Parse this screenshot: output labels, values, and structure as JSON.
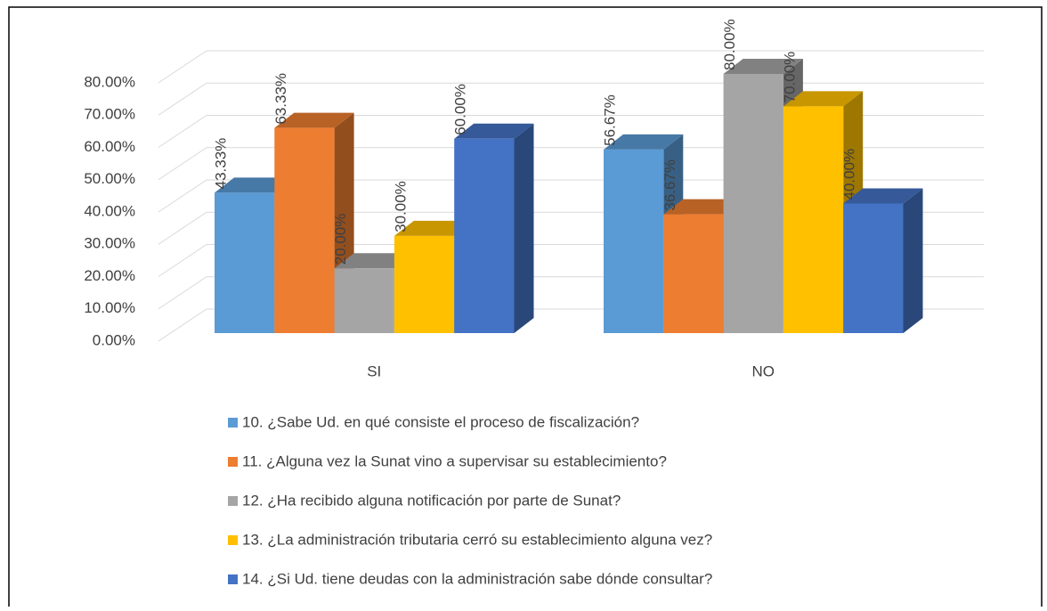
{
  "chart_data": {
    "type": "bar3d",
    "categories": [
      "SI",
      "NO"
    ],
    "series": [
      {
        "name": "10. ¿Sabe Ud. en qué consiste el proceso de fiscalización?",
        "color": "#5b9bd5",
        "values": [
          43.33,
          56.67
        ],
        "value_labels": [
          "43.33%",
          "56.67%"
        ]
      },
      {
        "name": "11. ¿Alguna vez la Sunat  vino a supervisar su establecimiento?",
        "color": "#ed7d31",
        "values": [
          63.33,
          36.67
        ],
        "value_labels": [
          "63.33%",
          "36.67%"
        ]
      },
      {
        "name": "12. ¿Ha recibido alguna notificación por parte de Sunat?",
        "color": "#a5a5a5",
        "values": [
          20,
          80
        ],
        "value_labels": [
          "20.00%",
          "80.00%"
        ]
      },
      {
        "name": "13. ¿La administración tributaria cerró su establecimiento alguna vez?",
        "color": "#ffc000",
        "values": [
          30,
          70
        ],
        "value_labels": [
          "30.00%",
          "70.00%"
        ]
      },
      {
        "name": "14. ¿Si Ud. tiene deudas con la administración sabe dónde consultar?",
        "color": "#4472c4",
        "values": [
          60,
          40
        ],
        "value_labels": [
          "60.00%",
          "40.00%"
        ]
      }
    ],
    "ylim": [
      0,
      80
    ],
    "yticks": [
      {
        "value": 0,
        "label": "0.00%"
      },
      {
        "value": 10,
        "label": "10.00%"
      },
      {
        "value": 20,
        "label": "20.00%"
      },
      {
        "value": 30,
        "label": "30.00%"
      },
      {
        "value": 40,
        "label": "40.00%"
      },
      {
        "value": 50,
        "label": "50.00%"
      },
      {
        "value": 60,
        "label": "60.00%"
      },
      {
        "value": 70,
        "label": "70.00%"
      },
      {
        "value": 80,
        "label": "80.00%"
      }
    ],
    "grid": true,
    "legend": "bottom"
  }
}
